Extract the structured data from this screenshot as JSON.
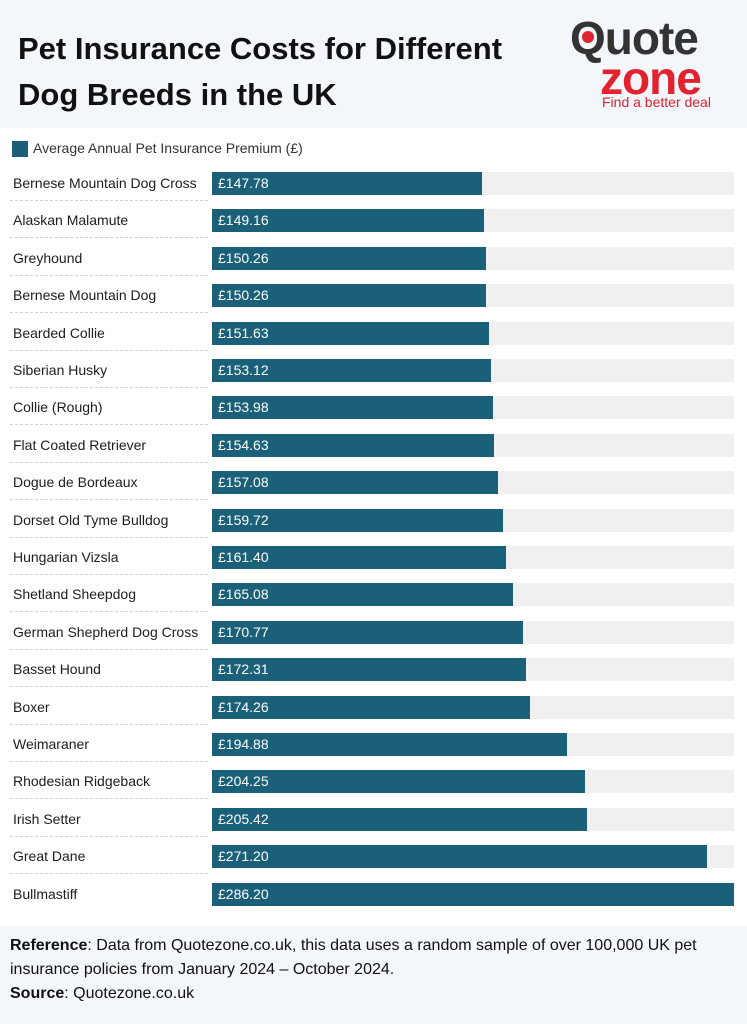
{
  "header": {
    "title": "Pet Insurance Costs for Different Dog Breeds in the UK",
    "logo": {
      "word1": "Quote",
      "word2": "zone",
      "tagline": "Find a better deal"
    }
  },
  "colors": {
    "bar": "#1b6079",
    "track": "#f0f0f0",
    "brand_red": "#e2232e"
  },
  "chart_data": {
    "type": "bar",
    "orientation": "horizontal",
    "legend": [
      "Average Annual Pet Insurance Premium (£)"
    ],
    "currency_prefix": "£",
    "xlim": [
      0,
      286.2
    ],
    "categories": [
      "Bernese Mountain Dog Cross",
      "Alaskan Malamute",
      "Greyhound",
      "Bernese Mountain Dog",
      "Bearded Collie",
      "Siberian Husky",
      "Collie (Rough)",
      "Flat Coated Retriever",
      "Dogue de Bordeaux",
      "Dorset Old Tyme Bulldog",
      "Hungarian Vizsla",
      "Shetland Sheepdog",
      "German Shepherd Dog Cross",
      "Basset Hound",
      "Boxer",
      "Weimaraner",
      "Rhodesian Ridgeback",
      "Irish Setter",
      "Great Dane",
      "Bullmastiff"
    ],
    "values": [
      147.78,
      149.16,
      150.26,
      150.26,
      151.63,
      153.12,
      153.98,
      154.63,
      157.08,
      159.72,
      161.4,
      165.08,
      170.77,
      172.31,
      174.26,
      194.88,
      204.25,
      205.42,
      271.2,
      286.2
    ],
    "value_labels": [
      "£147.78",
      "£149.16",
      "£150.26",
      "£150.26",
      "£151.63",
      "£153.12",
      "£153.98",
      "£154.63",
      "£157.08",
      "£159.72",
      "£161.40",
      "£165.08",
      "£170.77",
      "£172.31",
      "£174.26",
      "£194.88",
      "£204.25",
      "£205.42",
      "£271.20",
      "£286.20"
    ]
  },
  "footer": {
    "reference_label": "Reference",
    "reference_text": ": Data from Quotezone.co.uk, this data uses a random sample of over 100,000 UK pet insurance policies from January 2024 – October 2024.",
    "source_label": "Source",
    "source_text": ": Quotezone.co.uk"
  }
}
